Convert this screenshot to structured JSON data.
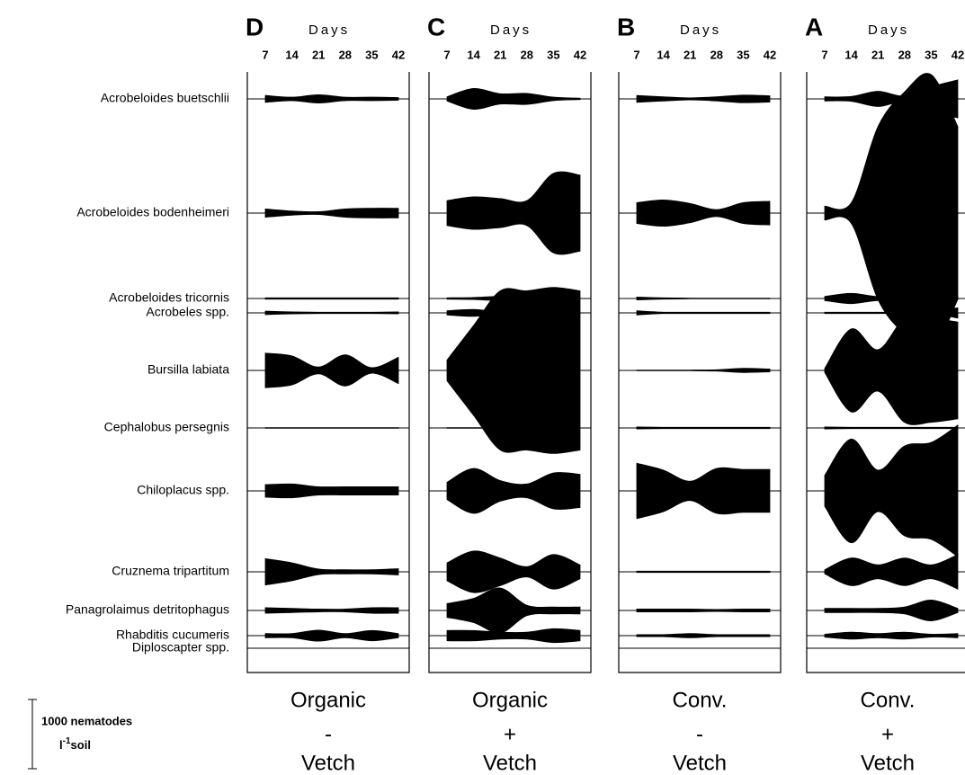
{
  "chart_data": {
    "type": "kite",
    "x_label": "Days",
    "x": [
      7,
      14,
      21,
      28,
      35,
      42
    ],
    "xticks": [
      7,
      14,
      21,
      28,
      35,
      42
    ],
    "color": "#000000",
    "categories": [
      "Acrobeloides buetschlii",
      "Acrobeloides bodenheimeri",
      "Acrobeloides tricornis",
      "Acrobeles spp.",
      "Bursilla labiata",
      "Cephalobus persegnis",
      "Chiloplacus spp.",
      "Cruznema tripartitum",
      "Panagrolaimus detritophagus",
      "Rhabditis cucumeris",
      "Diploscapter spp."
    ],
    "scale_bar": {
      "value": 1000,
      "label": "1000 nematodes",
      "unit": [
        "l",
        "-1",
        "soil"
      ]
    },
    "panels": [
      {
        "letter": "D",
        "treatment": [
          "Organic",
          "-",
          "Vetch"
        ],
        "series": [
          {
            "values": [
              100,
              50,
              120,
              50,
              50,
              40
            ]
          },
          {
            "values": [
              120,
              60,
              40,
              120,
              140,
              140
            ]
          },
          {
            "values": [
              20,
              20,
              20,
              20,
              20,
              20
            ]
          },
          {
            "values": [
              50,
              30,
              20,
              20,
              20,
              30
            ]
          },
          {
            "values": [
              500,
              420,
              100,
              450,
              80,
              380
            ]
          },
          {
            "values": [
              10,
              10,
              10,
              10,
              10,
              10
            ]
          },
          {
            "values": [
              180,
              200,
              120,
              120,
              120,
              120
            ]
          },
          {
            "values": [
              380,
              260,
              80,
              60,
              60,
              90
            ]
          },
          {
            "values": [
              80,
              60,
              40,
              40,
              80,
              80
            ]
          },
          {
            "values": [
              60,
              60,
              160,
              60,
              150,
              60
            ]
          },
          {
            "values": [
              0,
              0,
              0,
              0,
              0,
              0
            ]
          }
        ]
      },
      {
        "letter": "C",
        "treatment": [
          "Organic",
          "+",
          "Vetch"
        ],
        "series": [
          {
            "values": [
              60,
              300,
              150,
              160,
              50,
              20
            ]
          },
          {
            "values": [
              360,
              470,
              420,
              360,
              1150,
              1100
            ]
          },
          {
            "values": [
              20,
              30,
              60,
              30,
              40,
              20
            ]
          },
          {
            "values": [
              60,
              100,
              30,
              30,
              100,
              30
            ]
          },
          {
            "values": [
              300,
              1300,
              2300,
              2300,
              2400,
              2300
            ]
          },
          {
            "values": [
              10,
              10,
              10,
              10,
              10,
              10
            ]
          },
          {
            "values": [
              250,
              650,
              300,
              200,
              520,
              480
            ]
          },
          {
            "values": [
              260,
              600,
              400,
              150,
              500,
              200
            ]
          },
          {
            "values": [
              200,
              350,
              650,
              150,
              100,
              100
            ]
          },
          {
            "values": [
              150,
              150,
              100,
              100,
              200,
              150
            ]
          },
          {
            "values": [
              0,
              0,
              0,
              0,
              0,
              0
            ]
          }
        ]
      },
      {
        "letter": "B",
        "treatment": [
          "Conv.",
          "-",
          "Vetch"
        ],
        "series": [
          {
            "values": [
              100,
              60,
              30,
              60,
              110,
              90
            ]
          },
          {
            "values": [
              300,
              380,
              280,
              100,
              300,
              340
            ]
          },
          {
            "values": [
              40,
              20,
              10,
              10,
              10,
              10
            ]
          },
          {
            "values": [
              60,
              20,
              20,
              20,
              20,
              20
            ]
          },
          {
            "values": [
              10,
              10,
              10,
              20,
              60,
              40
            ]
          },
          {
            "values": [
              30,
              20,
              20,
              20,
              20,
              20
            ]
          },
          {
            "values": [
              800,
              600,
              280,
              650,
              620,
              620
            ]
          },
          {
            "values": [
              20,
              20,
              20,
              20,
              20,
              20
            ]
          },
          {
            "values": [
              40,
              40,
              40,
              30,
              40,
              40
            ]
          },
          {
            "values": [
              30,
              30,
              60,
              30,
              30,
              30
            ]
          },
          {
            "values": [
              0,
              0,
              0,
              0,
              0,
              0
            ]
          }
        ]
      },
      {
        "letter": "A",
        "treatment": [
          "Conv.",
          "+",
          "Vetch"
        ],
        "series": [
          {
            "values": [
              60,
              70,
              220,
              80,
              350,
              550
            ]
          },
          {
            "values": [
              200,
              300,
              2500,
              3500,
              4000,
              2500
            ]
          },
          {
            "values": [
              60,
              150,
              60,
              130,
              160,
              30
            ]
          },
          {
            "values": [
              20,
              20,
              20,
              20,
              20,
              150
            ]
          },
          {
            "values": [
              60,
              1200,
              600,
              1500,
              1500,
              1400
            ]
          },
          {
            "values": [
              30,
              20,
              20,
              20,
              20,
              20
            ]
          },
          {
            "values": [
              450,
              1500,
              600,
              1300,
              1400,
              1900
            ]
          },
          {
            "values": [
              60,
              400,
              200,
              400,
              200,
              500
            ]
          },
          {
            "values": [
              60,
              60,
              60,
              100,
              300,
              60
            ]
          },
          {
            "values": [
              40,
              100,
              60,
              100,
              40,
              60
            ]
          },
          {
            "values": [
              0,
              0,
              0,
              0,
              0,
              0
            ]
          }
        ]
      }
    ]
  }
}
